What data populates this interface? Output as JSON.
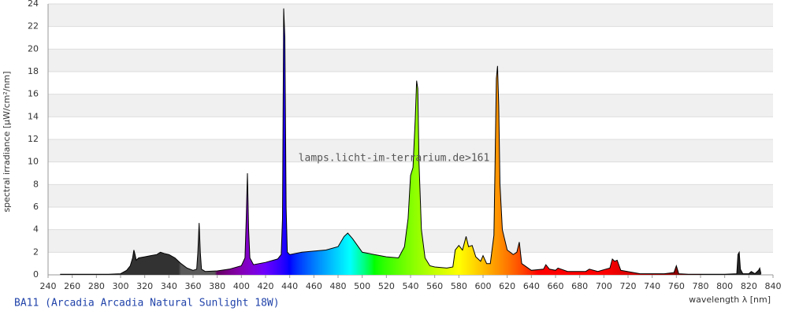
{
  "chart_data": {
    "type": "area",
    "title": "BA11 (Arcadia Arcadia Natural Sunlight 18W)",
    "watermark": "lamps.licht-im-terrarium.de>161",
    "x_label": "wavelength λ [nm]",
    "y_label": "spectral irradiance [µW/cm²/nm]",
    "xlim": [
      240,
      840
    ],
    "ylim": [
      0,
      24
    ],
    "xticks": [
      240,
      260,
      280,
      300,
      320,
      340,
      360,
      380,
      400,
      420,
      440,
      460,
      480,
      500,
      520,
      540,
      560,
      580,
      600,
      620,
      640,
      660,
      680,
      700,
      720,
      740,
      760,
      780,
      800,
      820,
      840
    ],
    "yticks": [
      0,
      2,
      4,
      6,
      8,
      10,
      12,
      14,
      16,
      18,
      20,
      22,
      24
    ],
    "grid": true,
    "x": [
      250,
      270,
      290,
      300,
      305,
      308,
      310,
      311,
      312,
      313,
      315,
      320,
      325,
      330,
      333,
      336,
      340,
      345,
      350,
      355,
      360,
      363,
      364,
      365,
      366,
      367,
      370,
      380,
      390,
      400,
      403,
      404,
      405,
      406,
      407,
      410,
      420,
      430,
      433,
      434,
      435,
      436,
      437,
      438,
      440,
      450,
      460,
      470,
      480,
      485,
      488,
      492,
      500,
      510,
      520,
      530,
      535,
      538,
      540,
      542,
      544,
      545,
      546,
      547,
      549,
      552,
      556,
      560,
      570,
      575,
      577,
      580,
      583,
      586,
      588,
      591,
      594,
      598,
      600,
      603,
      606,
      609,
      610,
      611,
      612,
      613,
      614,
      616,
      620,
      625,
      628,
      630,
      632,
      640,
      650,
      652,
      655,
      660,
      662,
      670,
      685,
      688,
      695,
      705,
      707,
      709,
      711,
      714,
      730,
      750,
      758,
      760,
      762,
      770,
      780,
      800,
      810,
      811,
      812,
      813,
      815,
      820,
      822,
      825,
      828,
      829,
      830
    ],
    "values": [
      0.05,
      0.05,
      0.05,
      0.1,
      0.4,
      0.8,
      1.5,
      2.2,
      1.8,
      1.3,
      1.5,
      1.6,
      1.7,
      1.8,
      2.0,
      1.9,
      1.8,
      1.5,
      1.0,
      0.6,
      0.4,
      0.5,
      2.0,
      4.6,
      2.0,
      0.5,
      0.3,
      0.35,
      0.5,
      0.8,
      1.5,
      5,
      9,
      4,
      1.5,
      0.9,
      1.1,
      1.4,
      1.8,
      5,
      23.6,
      21,
      6,
      2.0,
      1.8,
      2.0,
      2.1,
      2.2,
      2.5,
      3.4,
      3.7,
      3.2,
      2.0,
      1.8,
      1.6,
      1.5,
      2.5,
      5,
      8.8,
      9.5,
      14,
      17.2,
      16.5,
      10,
      4,
      1.5,
      0.8,
      0.7,
      0.6,
      0.7,
      2.2,
      2.6,
      2.2,
      3.4,
      2.5,
      2.6,
      1.6,
      1.2,
      1.7,
      1.0,
      1.0,
      3.5,
      10,
      17.4,
      18.5,
      15,
      8,
      4,
      2.2,
      1.8,
      2.0,
      2.9,
      1.0,
      0.4,
      0.5,
      0.9,
      0.5,
      0.4,
      0.6,
      0.3,
      0.3,
      0.5,
      0.3,
      0.6,
      1.4,
      1.2,
      1.3,
      0.4,
      0.1,
      0.1,
      0.2,
      0.8,
      0.1,
      0.05,
      0.05,
      0.05,
      0.1,
      1.8,
      2.0,
      0.5,
      0.1,
      0.1,
      0.3,
      0.1,
      0.4,
      0.6,
      0.1
    ]
  }
}
